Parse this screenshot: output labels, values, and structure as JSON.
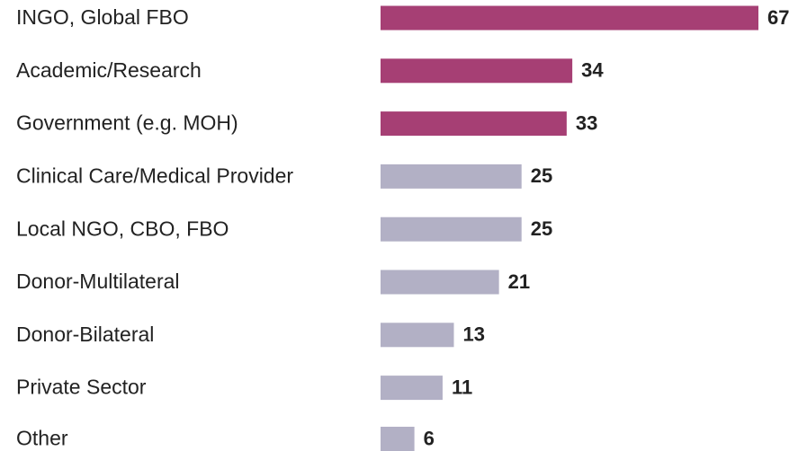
{
  "chart_data": {
    "type": "bar",
    "orientation": "horizontal",
    "categories": [
      "INGO, Global FBO",
      "Academic/Research",
      "Government (e.g. MOH)",
      "Clinical Care/Medical Provider",
      "Local NGO, CBO, FBO",
      "Donor-Multilateral",
      "Donor-Bilateral",
      "Private Sector",
      "Other"
    ],
    "values": [
      67,
      34,
      33,
      25,
      25,
      21,
      13,
      11,
      6
    ],
    "colors": [
      "#a63f74",
      "#a63f74",
      "#a63f74",
      "#b2b0c5",
      "#b2b0c5",
      "#b2b0c5",
      "#b2b0c5",
      "#b2b0c5",
      "#b2b0c5"
    ]
  }
}
